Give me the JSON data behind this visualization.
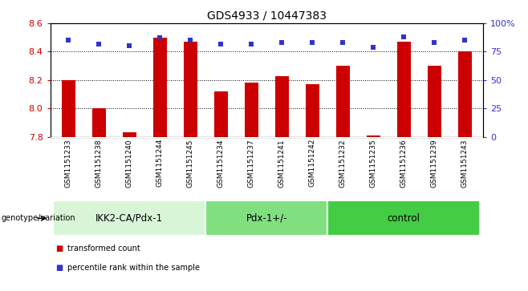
{
  "title": "GDS4933 / 10447383",
  "samples": [
    "GSM1151233",
    "GSM1151238",
    "GSM1151240",
    "GSM1151244",
    "GSM1151245",
    "GSM1151234",
    "GSM1151237",
    "GSM1151241",
    "GSM1151242",
    "GSM1151232",
    "GSM1151235",
    "GSM1151236",
    "GSM1151239",
    "GSM1151243"
  ],
  "bar_values": [
    8.2,
    8.0,
    7.83,
    8.5,
    8.47,
    8.12,
    8.18,
    8.23,
    8.17,
    8.3,
    7.81,
    8.47,
    8.3,
    8.4
  ],
  "percentile_values": [
    85,
    82,
    80,
    87,
    85,
    82,
    82,
    83,
    83,
    83,
    79,
    88,
    83,
    85
  ],
  "bar_base": 7.8,
  "ylim_left": [
    7.8,
    8.6
  ],
  "ylim_right": [
    0,
    100
  ],
  "yticks_left": [
    7.8,
    8.0,
    8.2,
    8.4,
    8.6
  ],
  "yticks_right": [
    0,
    25,
    50,
    75,
    100
  ],
  "ytick_labels_right": [
    "0",
    "25",
    "50",
    "75",
    "100%"
  ],
  "bar_color": "#CC0000",
  "dot_color": "#3333CC",
  "groups": [
    {
      "label": "IKK2-CA/Pdx-1",
      "start": 0,
      "end": 5,
      "color": "#d8f5d8"
    },
    {
      "label": "Pdx-1+/-",
      "start": 5,
      "end": 9,
      "color": "#80e080"
    },
    {
      "label": "control",
      "start": 9,
      "end": 14,
      "color": "#44cc44"
    }
  ],
  "group_row_label": "genotype/variation",
  "legend_bar_label": "transformed count",
  "legend_dot_label": "percentile rank within the sample",
  "title_fontsize": 10,
  "tick_fontsize": 8,
  "sample_fontsize": 6.5,
  "group_fontsize": 8.5,
  "background_color": "#ffffff",
  "plot_bg_color": "#ffffff",
  "sample_label_bg": "#cccccc"
}
